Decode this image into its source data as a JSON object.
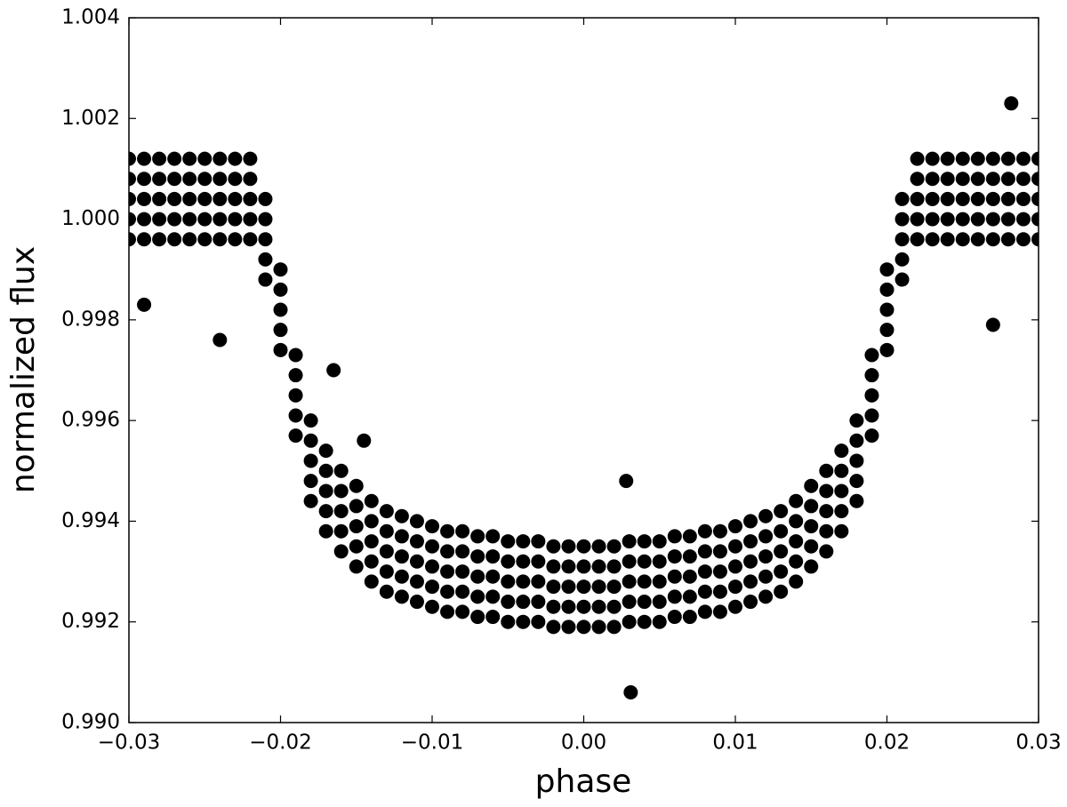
{
  "chart_data": {
    "type": "scatter",
    "xlabel": "phase",
    "ylabel": "normalized flux",
    "color": "#000000",
    "xlim": [
      -0.03,
      0.03
    ],
    "ylim": [
      0.99,
      1.004
    ],
    "xticks": [
      {
        "value": -0.03,
        "label": "−0.03"
      },
      {
        "value": -0.02,
        "label": "−0.02"
      },
      {
        "value": -0.01,
        "label": "−0.01"
      },
      {
        "value": 0,
        "label": "0.00"
      },
      0.01,
      0.02,
      0.03
    ],
    "yticks": [
      {
        "value": 0.99,
        "label": "0.990"
      },
      0.992,
      0.994,
      0.996,
      0.998,
      {
        "value": 1.0,
        "label": "1.000"
      },
      1.002,
      1.004
    ],
    "x": [
      -0.03,
      -0.03,
      -0.03,
      -0.03,
      -0.03,
      -0.029,
      -0.029,
      -0.029,
      -0.029,
      -0.029,
      -0.028,
      -0.028,
      -0.028,
      -0.028,
      -0.028,
      -0.027,
      -0.027,
      -0.027,
      -0.027,
      -0.027,
      -0.026,
      -0.026,
      -0.026,
      -0.026,
      -0.026,
      -0.025,
      -0.025,
      -0.025,
      -0.025,
      -0.025,
      -0.024,
      -0.024,
      -0.024,
      -0.024,
      -0.024,
      -0.023,
      -0.023,
      -0.023,
      -0.023,
      -0.023,
      -0.022,
      -0.022,
      -0.022,
      -0.022,
      -0.022,
      -0.021,
      -0.021,
      -0.021,
      -0.021,
      -0.021,
      -0.02,
      -0.02,
      -0.02,
      -0.02,
      -0.02,
      -0.019,
      -0.019,
      -0.019,
      -0.019,
      -0.019,
      -0.018,
      -0.018,
      -0.018,
      -0.018,
      -0.018,
      -0.017,
      -0.017,
      -0.017,
      -0.017,
      -0.017,
      -0.016,
      -0.016,
      -0.016,
      -0.016,
      -0.016,
      -0.015,
      -0.015,
      -0.015,
      -0.015,
      -0.015,
      -0.014,
      -0.014,
      -0.014,
      -0.014,
      -0.014,
      -0.013,
      -0.013,
      -0.013,
      -0.013,
      -0.013,
      -0.012,
      -0.012,
      -0.012,
      -0.012,
      -0.012,
      -0.011,
      -0.011,
      -0.011,
      -0.011,
      -0.011,
      -0.01,
      -0.01,
      -0.01,
      -0.01,
      -0.01,
      -0.009,
      -0.009,
      -0.009,
      -0.009,
      -0.009,
      -0.008,
      -0.008,
      -0.008,
      -0.008,
      -0.008,
      -0.007,
      -0.007,
      -0.007,
      -0.007,
      -0.007,
      -0.006,
      -0.006,
      -0.006,
      -0.006,
      -0.006,
      -0.005,
      -0.005,
      -0.005,
      -0.005,
      -0.005,
      -0.004,
      -0.004,
      -0.004,
      -0.004,
      -0.004,
      -0.003,
      -0.003,
      -0.003,
      -0.003,
      -0.003,
      -0.002,
      -0.002,
      -0.002,
      -0.002,
      -0.002,
      -0.001,
      -0.001,
      -0.001,
      -0.001,
      -0.001,
      0.0,
      0.0,
      0.0,
      0.0,
      0.0,
      0.001,
      0.001,
      0.001,
      0.001,
      0.001,
      0.002,
      0.002,
      0.002,
      0.002,
      0.002,
      0.003,
      0.003,
      0.003,
      0.003,
      0.003,
      0.004,
      0.004,
      0.004,
      0.004,
      0.004,
      0.005,
      0.005,
      0.005,
      0.005,
      0.005,
      0.006,
      0.006,
      0.006,
      0.006,
      0.006,
      0.007,
      0.007,
      0.007,
      0.007,
      0.007,
      0.008,
      0.008,
      0.008,
      0.008,
      0.008,
      0.009,
      0.009,
      0.009,
      0.009,
      0.009,
      0.01,
      0.01,
      0.01,
      0.01,
      0.01,
      0.011,
      0.011,
      0.011,
      0.011,
      0.011,
      0.012,
      0.012,
      0.012,
      0.012,
      0.012,
      0.013,
      0.013,
      0.013,
      0.013,
      0.013,
      0.014,
      0.014,
      0.014,
      0.014,
      0.014,
      0.015,
      0.015,
      0.015,
      0.015,
      0.015,
      0.016,
      0.016,
      0.016,
      0.016,
      0.016,
      0.017,
      0.017,
      0.017,
      0.017,
      0.017,
      0.018,
      0.018,
      0.018,
      0.018,
      0.018,
      0.019,
      0.019,
      0.019,
      0.019,
      0.019,
      0.02,
      0.02,
      0.02,
      0.02,
      0.02,
      0.021,
      0.021,
      0.021,
      0.021,
      0.021,
      0.022,
      0.022,
      0.022,
      0.022,
      0.022,
      0.023,
      0.023,
      0.023,
      0.023,
      0.023,
      0.024,
      0.024,
      0.024,
      0.024,
      0.024,
      0.025,
      0.025,
      0.025,
      0.025,
      0.025,
      0.026,
      0.026,
      0.026,
      0.026,
      0.026,
      0.027,
      0.027,
      0.027,
      0.027,
      0.027,
      0.028,
      0.028,
      0.028,
      0.028,
      0.028,
      0.029,
      0.029,
      0.029,
      0.029,
      0.029,
      0.03,
      0.03,
      0.03,
      0.03,
      0.03,
      -0.029,
      -0.024,
      -0.0165,
      -0.0145,
      0.0028,
      0.0031,
      0.0282,
      0.027
    ],
    "y": [
      0.9996,
      1.0,
      1.0004,
      1.0008,
      1.0012,
      0.9996,
      1.0,
      1.0004,
      1.0008,
      1.0012,
      0.9996,
      1.0,
      1.0004,
      1.0008,
      1.0012,
      0.9996,
      1.0,
      1.0004,
      1.0008,
      1.0012,
      0.9996,
      1.0,
      1.0004,
      1.0008,
      1.0012,
      0.9996,
      1.0,
      1.0004,
      1.0008,
      1.0012,
      0.9996,
      1.0,
      1.0004,
      1.0008,
      1.0012,
      0.9996,
      1.0,
      1.0004,
      1.0008,
      1.0012,
      0.9996,
      1.0,
      1.0004,
      1.0008,
      1.0012,
      0.9988,
      0.9992,
      0.9996,
      1.0,
      1.0004,
      0.9974,
      0.9978,
      0.9982,
      0.9986,
      0.999,
      0.9957,
      0.9961,
      0.9965,
      0.9969,
      0.9973,
      0.9944,
      0.9948,
      0.9952,
      0.9956,
      0.996,
      0.9938,
      0.9942,
      0.9946,
      0.995,
      0.9954,
      0.9934,
      0.9938,
      0.9942,
      0.9946,
      0.995,
      0.9931,
      0.9935,
      0.9939,
      0.9943,
      0.9947,
      0.9928,
      0.9932,
      0.9936,
      0.994,
      0.9944,
      0.9926,
      0.993,
      0.9934,
      0.9938,
      0.9942,
      0.9925,
      0.9929,
      0.9933,
      0.9937,
      0.9941,
      0.9924,
      0.9928,
      0.9932,
      0.9936,
      0.994,
      0.9923,
      0.9927,
      0.9931,
      0.9935,
      0.9939,
      0.9922,
      0.9926,
      0.993,
      0.9934,
      0.9938,
      0.9922,
      0.9926,
      0.993,
      0.9934,
      0.9938,
      0.9921,
      0.9925,
      0.9929,
      0.9933,
      0.9937,
      0.9921,
      0.9925,
      0.9929,
      0.9933,
      0.9937,
      0.992,
      0.9924,
      0.9928,
      0.9932,
      0.9936,
      0.992,
      0.9924,
      0.9928,
      0.9932,
      0.9936,
      0.992,
      0.9924,
      0.9928,
      0.9932,
      0.9936,
      0.9919,
      0.9923,
      0.9927,
      0.9931,
      0.9935,
      0.9919,
      0.9923,
      0.9927,
      0.9931,
      0.9935,
      0.9919,
      0.9923,
      0.9927,
      0.9931,
      0.9935,
      0.9919,
      0.9923,
      0.9927,
      0.9931,
      0.9935,
      0.9919,
      0.9923,
      0.9927,
      0.9931,
      0.9935,
      0.992,
      0.9924,
      0.9928,
      0.9932,
      0.9936,
      0.992,
      0.9924,
      0.9928,
      0.9932,
      0.9936,
      0.992,
      0.9924,
      0.9928,
      0.9932,
      0.9936,
      0.9921,
      0.9925,
      0.9929,
      0.9933,
      0.9937,
      0.9921,
      0.9925,
      0.9929,
      0.9933,
      0.9937,
      0.9922,
      0.9926,
      0.993,
      0.9934,
      0.9938,
      0.9922,
      0.9926,
      0.993,
      0.9934,
      0.9938,
      0.9923,
      0.9927,
      0.9931,
      0.9935,
      0.9939,
      0.9924,
      0.9928,
      0.9932,
      0.9936,
      0.994,
      0.9925,
      0.9929,
      0.9933,
      0.9937,
      0.9941,
      0.9926,
      0.993,
      0.9934,
      0.9938,
      0.9942,
      0.9928,
      0.9932,
      0.9936,
      0.994,
      0.9944,
      0.9931,
      0.9935,
      0.9939,
      0.9943,
      0.9947,
      0.9934,
      0.9938,
      0.9942,
      0.9946,
      0.995,
      0.9938,
      0.9942,
      0.9946,
      0.995,
      0.9954,
      0.9944,
      0.9948,
      0.9952,
      0.9956,
      0.996,
      0.9957,
      0.9961,
      0.9965,
      0.9969,
      0.9973,
      0.9974,
      0.9978,
      0.9982,
      0.9986,
      0.999,
      0.9988,
      0.9992,
      0.9996,
      1.0,
      1.0004,
      0.9996,
      1.0,
      1.0004,
      1.0008,
      1.0012,
      0.9996,
      1.0,
      1.0004,
      1.0008,
      1.0012,
      0.9996,
      1.0,
      1.0004,
      1.0008,
      1.0012,
      0.9996,
      1.0,
      1.0004,
      1.0008,
      1.0012,
      0.9996,
      1.0,
      1.0004,
      1.0008,
      1.0012,
      0.9996,
      1.0,
      1.0004,
      1.0008,
      1.0012,
      0.9996,
      1.0,
      1.0004,
      1.0008,
      1.0012,
      0.9996,
      1.0,
      1.0004,
      1.0008,
      1.0012,
      0.9996,
      1.0,
      1.0004,
      1.0008,
      1.0012,
      0.9983,
      0.9976,
      0.997,
      0.9956,
      0.9948,
      0.9906,
      1.0023,
      0.9979
    ]
  }
}
